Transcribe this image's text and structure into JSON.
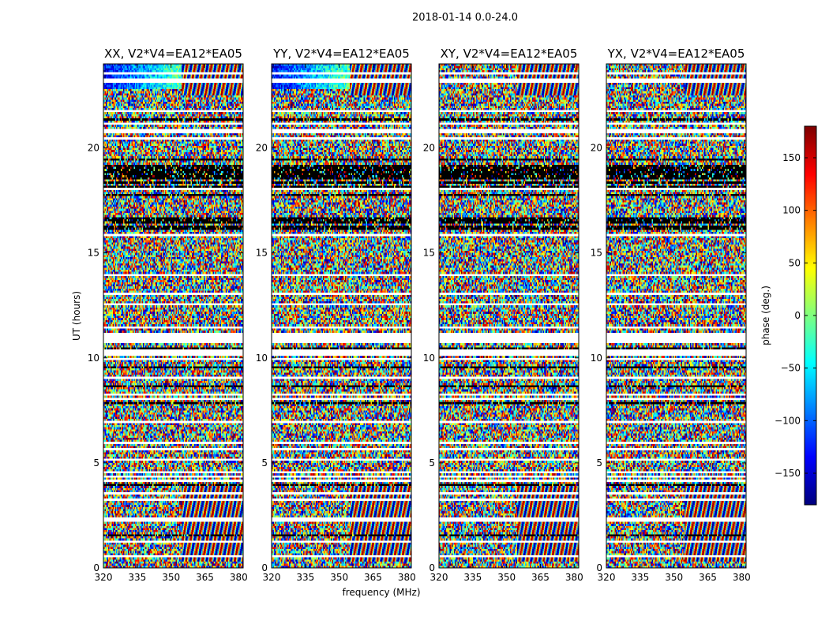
{
  "figure": {
    "suptitle": "2018-01-14 0.0-24.0"
  },
  "chart_data": [
    {
      "type": "heatmap",
      "title": "XX, V2*V4=EA12*EA05",
      "xlabel": "",
      "ylabel": "UT (hours)",
      "xlim": [
        320,
        382
      ],
      "ylim": [
        0,
        24
      ],
      "xticks": [
        320,
        335,
        350,
        365,
        380
      ],
      "yticks": [
        0,
        5,
        10,
        15,
        20
      ],
      "value_range": [
        -180,
        180
      ]
    },
    {
      "type": "heatmap",
      "title": "YY, V2*V4=EA12*EA05",
      "xlabel": "frequency (MHz)",
      "ylabel": "",
      "xlim": [
        320,
        382
      ],
      "ylim": [
        0,
        24
      ],
      "xticks": [
        320,
        335,
        350,
        365,
        380
      ],
      "yticks": [
        0,
        5,
        10,
        15,
        20
      ],
      "value_range": [
        -180,
        180
      ]
    },
    {
      "type": "heatmap",
      "title": "XY, V2*V4=EA12*EA05",
      "xlabel": "",
      "ylabel": "",
      "xlim": [
        320,
        382
      ],
      "ylim": [
        0,
        24
      ],
      "xticks": [
        320,
        335,
        350,
        365,
        380
      ],
      "yticks": [
        0,
        5,
        10,
        15,
        20
      ],
      "value_range": [
        -180,
        180
      ]
    },
    {
      "type": "heatmap",
      "title": "YX, V2*V4=EA12*EA05",
      "xlabel": "",
      "ylabel": "",
      "xlim": [
        320,
        382
      ],
      "ylim": [
        0,
        24
      ],
      "xticks": [
        320,
        335,
        350,
        365,
        380
      ],
      "yticks": [
        0,
        5,
        10,
        15,
        20
      ],
      "value_range": [
        -180,
        180
      ]
    }
  ],
  "colorbar": {
    "label": "phase (deg.)",
    "range": [
      -180,
      180
    ],
    "ticks": [
      -150,
      -100,
      -50,
      0,
      50,
      100,
      150
    ],
    "tick_labels": [
      "−150",
      "−100",
      "−50",
      "0",
      "50",
      "100",
      "150"
    ],
    "colormap": "jet"
  },
  "colors": {
    "text": "#000000",
    "flagged": "#ffffff",
    "frame": "#000000"
  }
}
